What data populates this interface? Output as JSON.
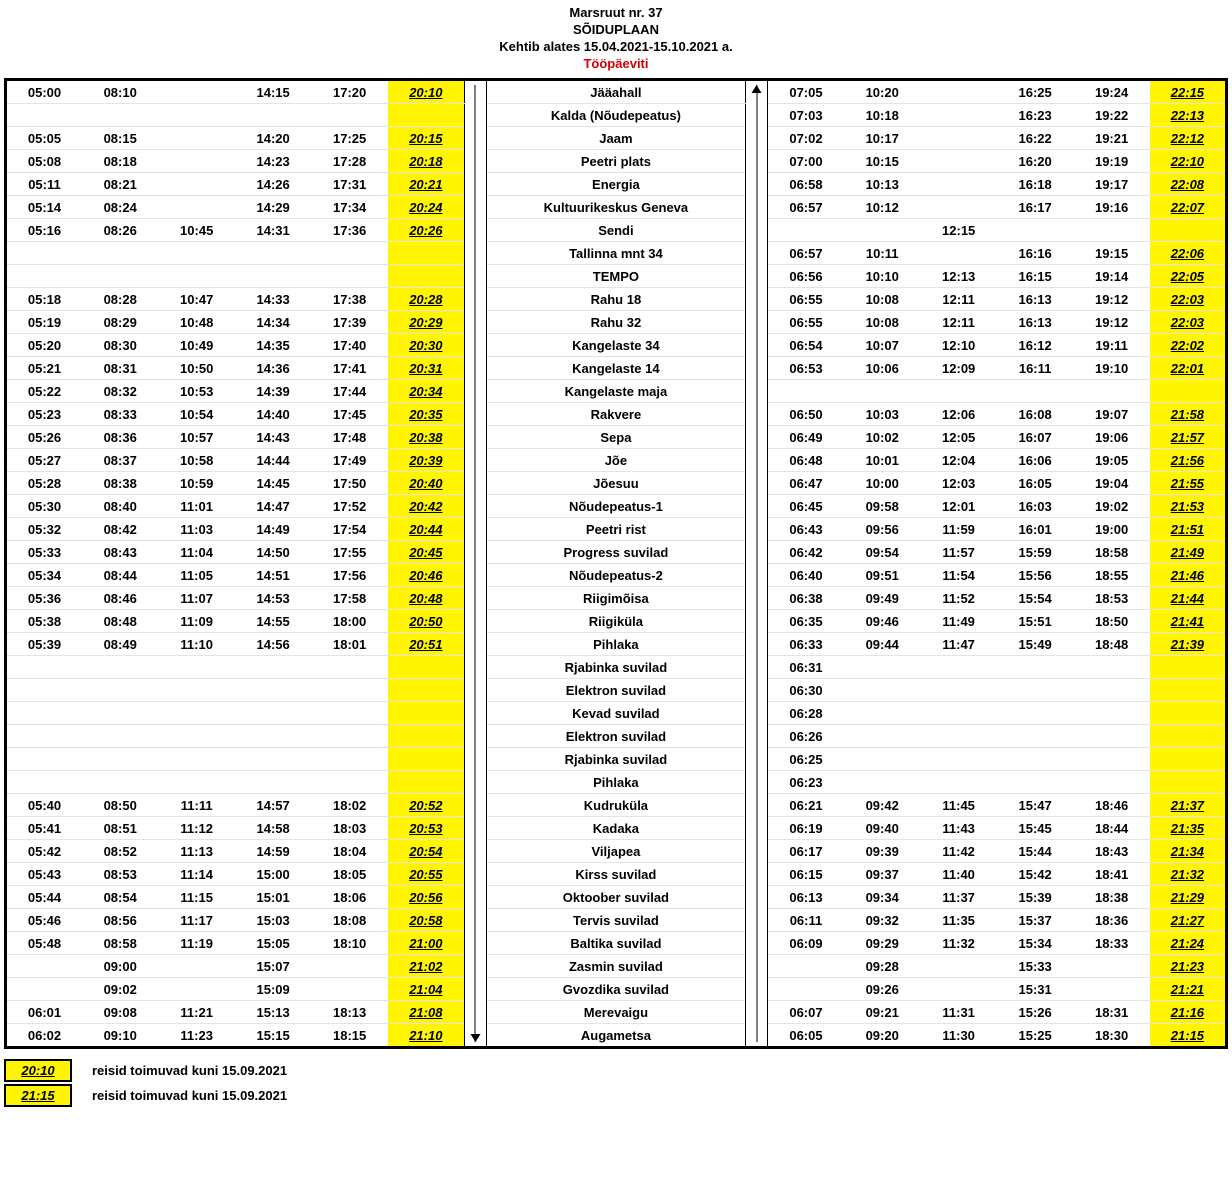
{
  "header": {
    "route": "Marsruut  nr. 37",
    "title": "SÕIDUPLAAN",
    "valid": "Kehtib alates 15.04.2021-15.10.2021 a.",
    "days": "Tööpäeviti"
  },
  "legend": [
    {
      "swatch": "20:10",
      "text": "reisid toimuvad kuni 15.09.2021"
    },
    {
      "swatch": "21:15",
      "text": "reisid toimuvad kuni 15.09.2021"
    }
  ],
  "rows": [
    {
      "l": [
        "05:00",
        "08:10",
        "",
        "14:15",
        "17:20",
        "20:10"
      ],
      "stop": "Jääahall",
      "r": [
        "07:05",
        "10:20",
        "",
        "16:25",
        "19:24",
        "22:15"
      ]
    },
    {
      "l": [
        "",
        "",
        "",
        "",
        "",
        ""
      ],
      "stop": "Kalda (Nõudepeatus)",
      "r": [
        "07:03",
        "10:18",
        "",
        "16:23",
        "19:22",
        "22:13"
      ]
    },
    {
      "l": [
        "05:05",
        "08:15",
        "",
        "14:20",
        "17:25",
        "20:15"
      ],
      "stop": "Jaam",
      "r": [
        "07:02",
        "10:17",
        "",
        "16:22",
        "19:21",
        "22:12"
      ]
    },
    {
      "l": [
        "05:08",
        "08:18",
        "",
        "14:23",
        "17:28",
        "20:18"
      ],
      "stop": "Peetri plats",
      "r": [
        "07:00",
        "10:15",
        "",
        "16:20",
        "19:19",
        "22:10"
      ]
    },
    {
      "l": [
        "05:11",
        "08:21",
        "",
        "14:26",
        "17:31",
        "20:21"
      ],
      "stop": "Energia",
      "r": [
        "06:58",
        "10:13",
        "",
        "16:18",
        "19:17",
        "22:08"
      ]
    },
    {
      "l": [
        "05:14",
        "08:24",
        "",
        "14:29",
        "17:34",
        "20:24"
      ],
      "stop": "Kultuurikeskus Geneva",
      "r": [
        "06:57",
        "10:12",
        "",
        "16:17",
        "19:16",
        "22:07"
      ]
    },
    {
      "l": [
        "05:16",
        "08:26",
        "10:45",
        "14:31",
        "17:36",
        "20:26"
      ],
      "stop": "Sendi",
      "r": [
        "",
        "",
        "12:15",
        "",
        "",
        ""
      ]
    },
    {
      "l": [
        "",
        "",
        "",
        "",
        "",
        ""
      ],
      "stop": "Tallinna mnt 34",
      "r": [
        "06:57",
        "10:11",
        "",
        "16:16",
        "19:15",
        "22:06"
      ]
    },
    {
      "l": [
        "",
        "",
        "",
        "",
        "",
        ""
      ],
      "stop": "TEMPO",
      "r": [
        "06:56",
        "10:10",
        "12:13",
        "16:15",
        "19:14",
        "22:05"
      ]
    },
    {
      "l": [
        "05:18",
        "08:28",
        "10:47",
        "14:33",
        "17:38",
        "20:28"
      ],
      "stop": "Rahu 18",
      "r": [
        "06:55",
        "10:08",
        "12:11",
        "16:13",
        "19:12",
        "22:03"
      ]
    },
    {
      "l": [
        "05:19",
        "08:29",
        "10:48",
        "14:34",
        "17:39",
        "20:29"
      ],
      "stop": "Rahu 32",
      "r": [
        "06:55",
        "10:08",
        "12:11",
        "16:13",
        "19:12",
        "22:03"
      ]
    },
    {
      "l": [
        "05:20",
        "08:30",
        "10:49",
        "14:35",
        "17:40",
        "20:30"
      ],
      "stop": "Kangelaste 34",
      "r": [
        "06:54",
        "10:07",
        "12:10",
        "16:12",
        "19:11",
        "22:02"
      ]
    },
    {
      "l": [
        "05:21",
        "08:31",
        "10:50",
        "14:36",
        "17:41",
        "20:31"
      ],
      "stop": "Kangelaste 14",
      "r": [
        "06:53",
        "10:06",
        "12:09",
        "16:11",
        "19:10",
        "22:01"
      ]
    },
    {
      "l": [
        "05:22",
        "08:32",
        "10:53",
        "14:39",
        "17:44",
        "20:34"
      ],
      "stop": "Kangelaste maja",
      "r": [
        "",
        "",
        "",
        "",
        "",
        ""
      ]
    },
    {
      "l": [
        "05:23",
        "08:33",
        "10:54",
        "14:40",
        "17:45",
        "20:35"
      ],
      "stop": "Rakvere",
      "r": [
        "06:50",
        "10:03",
        "12:06",
        "16:08",
        "19:07",
        "21:58"
      ]
    },
    {
      "l": [
        "05:26",
        "08:36",
        "10:57",
        "14:43",
        "17:48",
        "20:38"
      ],
      "stop": "Sepa",
      "r": [
        "06:49",
        "10:02",
        "12:05",
        "16:07",
        "19:06",
        "21:57"
      ]
    },
    {
      "l": [
        "05:27",
        "08:37",
        "10:58",
        "14:44",
        "17:49",
        "20:39"
      ],
      "stop": "Jõe",
      "r": [
        "06:48",
        "10:01",
        "12:04",
        "16:06",
        "19:05",
        "21:56"
      ]
    },
    {
      "l": [
        "05:28",
        "08:38",
        "10:59",
        "14:45",
        "17:50",
        "20:40"
      ],
      "stop": "Jõesuu",
      "r": [
        "06:47",
        "10:00",
        "12:03",
        "16:05",
        "19:04",
        "21:55"
      ]
    },
    {
      "l": [
        "05:30",
        "08:40",
        "11:01",
        "14:47",
        "17:52",
        "20:42"
      ],
      "stop": "Nõudepeatus-1",
      "r": [
        "06:45",
        "09:58",
        "12:01",
        "16:03",
        "19:02",
        "21:53"
      ]
    },
    {
      "l": [
        "05:32",
        "08:42",
        "11:03",
        "14:49",
        "17:54",
        "20:44"
      ],
      "stop": "Peetri rist",
      "r": [
        "06:43",
        "09:56",
        "11:59",
        "16:01",
        "19:00",
        "21:51"
      ]
    },
    {
      "l": [
        "05:33",
        "08:43",
        "11:04",
        "14:50",
        "17:55",
        "20:45"
      ],
      "stop": "Progress suvilad",
      "r": [
        "06:42",
        "09:54",
        "11:57",
        "15:59",
        "18:58",
        "21:49"
      ]
    },
    {
      "l": [
        "05:34",
        "08:44",
        "11:05",
        "14:51",
        "17:56",
        "20:46"
      ],
      "stop": "Nõudepeatus-2",
      "r": [
        "06:40",
        "09:51",
        "11:54",
        "15:56",
        "18:55",
        "21:46"
      ]
    },
    {
      "l": [
        "05:36",
        "08:46",
        "11:07",
        "14:53",
        "17:58",
        "20:48"
      ],
      "stop": "Riigimõisa",
      "r": [
        "06:38",
        "09:49",
        "11:52",
        "15:54",
        "18:53",
        "21:44"
      ]
    },
    {
      "l": [
        "05:38",
        "08:48",
        "11:09",
        "14:55",
        "18:00",
        "20:50"
      ],
      "stop": "Riigiküla",
      "r": [
        "06:35",
        "09:46",
        "11:49",
        "15:51",
        "18:50",
        "21:41"
      ]
    },
    {
      "l": [
        "05:39",
        "08:49",
        "11:10",
        "14:56",
        "18:01",
        "20:51"
      ],
      "stop": "Pihlaka",
      "r": [
        "06:33",
        "09:44",
        "11:47",
        "15:49",
        "18:48",
        "21:39"
      ]
    },
    {
      "l": [
        "",
        "",
        "",
        "",
        "",
        ""
      ],
      "stop": "Rjabinka suvilad",
      "r": [
        "06:31",
        "",
        "",
        "",
        "",
        ""
      ]
    },
    {
      "l": [
        "",
        "",
        "",
        "",
        "",
        ""
      ],
      "stop": "Elektron suvilad",
      "r": [
        "06:30",
        "",
        "",
        "",
        "",
        ""
      ]
    },
    {
      "l": [
        "",
        "",
        "",
        "",
        "",
        ""
      ],
      "stop": "Kevad suvilad",
      "r": [
        "06:28",
        "",
        "",
        "",
        "",
        ""
      ]
    },
    {
      "l": [
        "",
        "",
        "",
        "",
        "",
        ""
      ],
      "stop": "Elektron suvilad",
      "r": [
        "06:26",
        "",
        "",
        "",
        "",
        ""
      ]
    },
    {
      "l": [
        "",
        "",
        "",
        "",
        "",
        ""
      ],
      "stop": "Rjabinka suvilad",
      "r": [
        "06:25",
        "",
        "",
        "",
        "",
        ""
      ]
    },
    {
      "l": [
        "",
        "",
        "",
        "",
        "",
        ""
      ],
      "stop": "Pihlaka",
      "r": [
        "06:23",
        "",
        "",
        "",
        "",
        ""
      ]
    },
    {
      "l": [
        "05:40",
        "08:50",
        "11:11",
        "14:57",
        "18:02",
        "20:52"
      ],
      "stop": "Kudruküla",
      "r": [
        "06:21",
        "09:42",
        "11:45",
        "15:47",
        "18:46",
        "21:37"
      ]
    },
    {
      "l": [
        "05:41",
        "08:51",
        "11:12",
        "14:58",
        "18:03",
        "20:53"
      ],
      "stop": "Kadaka",
      "r": [
        "06:19",
        "09:40",
        "11:43",
        "15:45",
        "18:44",
        "21:35"
      ]
    },
    {
      "l": [
        "05:42",
        "08:52",
        "11:13",
        "14:59",
        "18:04",
        "20:54"
      ],
      "stop": "Viljapea",
      "r": [
        "06:17",
        "09:39",
        "11:42",
        "15:44",
        "18:43",
        "21:34"
      ]
    },
    {
      "l": [
        "05:43",
        "08:53",
        "11:14",
        "15:00",
        "18:05",
        "20:55"
      ],
      "stop": "Kirss suvilad",
      "r": [
        "06:15",
        "09:37",
        "11:40",
        "15:42",
        "18:41",
        "21:32"
      ]
    },
    {
      "l": [
        "05:44",
        "08:54",
        "11:15",
        "15:01",
        "18:06",
        "20:56"
      ],
      "stop": "Oktoober suvilad",
      "r": [
        "06:13",
        "09:34",
        "11:37",
        "15:39",
        "18:38",
        "21:29"
      ]
    },
    {
      "l": [
        "05:46",
        "08:56",
        "11:17",
        "15:03",
        "18:08",
        "20:58"
      ],
      "stop": "Tervis suvilad",
      "r": [
        "06:11",
        "09:32",
        "11:35",
        "15:37",
        "18:36",
        "21:27"
      ]
    },
    {
      "l": [
        "05:48",
        "08:58",
        "11:19",
        "15:05",
        "18:10",
        "21:00"
      ],
      "stop": "Baltika  suvilad",
      "r": [
        "06:09",
        "09:29",
        "11:32",
        "15:34",
        "18:33",
        "21:24"
      ]
    },
    {
      "l": [
        "",
        "09:00",
        "",
        "15:07",
        "",
        "21:02"
      ],
      "stop": "Zasmin suvilad",
      "r": [
        "",
        "09:28",
        "",
        "15:33",
        "",
        "21:23"
      ]
    },
    {
      "l": [
        "",
        "09:02",
        "",
        "15:09",
        "",
        "21:04"
      ],
      "stop": "Gvozdika suvilad",
      "r": [
        "",
        "09:26",
        "",
        "15:31",
        "",
        "21:21"
      ]
    },
    {
      "l": [
        "06:01",
        "09:08",
        "11:21",
        "15:13",
        "18:13",
        "21:08"
      ],
      "stop": "Merevaigu",
      "r": [
        "06:07",
        "09:21",
        "11:31",
        "15:26",
        "18:31",
        "21:16"
      ]
    },
    {
      "l": [
        "06:02",
        "09:10",
        "11:23",
        "15:15",
        "18:15",
        "21:10"
      ],
      "stop": "Augametsa",
      "r": [
        "06:05",
        "09:20",
        "11:30",
        "15:25",
        "18:30",
        "21:15"
      ]
    }
  ]
}
